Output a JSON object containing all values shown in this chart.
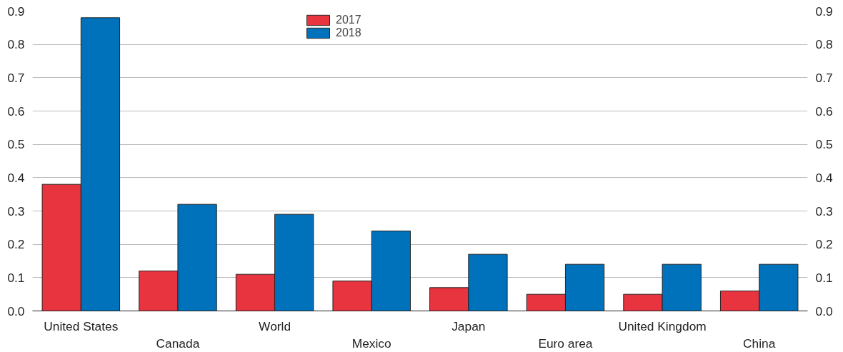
{
  "chart_data": {
    "type": "bar",
    "categories": [
      "United States",
      "Canada",
      "World",
      "Mexico",
      "Japan",
      "Euro area",
      "United Kingdom",
      "China"
    ],
    "series": [
      {
        "name": "2017",
        "color": "#e8343e",
        "values": [
          0.38,
          0.12,
          0.11,
          0.09,
          0.07,
          0.05,
          0.05,
          0.06
        ]
      },
      {
        "name": "2018",
        "color": "#0072bc",
        "values": [
          0.88,
          0.32,
          0.29,
          0.24,
          0.17,
          0.14,
          0.14,
          0.14
        ]
      }
    ],
    "ylim": [
      0,
      0.9
    ],
    "yticks": [
      {
        "value": 0,
        "label": "0.0"
      },
      0.1,
      0.2,
      0.3,
      0.4,
      0.5,
      0.6,
      0.7,
      0.8,
      0.9
    ],
    "y2lim": [
      0,
      0.9
    ],
    "y2ticks": [
      {
        "value": 0,
        "label": "0.0"
      },
      0.1,
      0.2,
      0.3,
      0.4,
      0.5,
      0.6,
      0.7,
      0.8,
      0.9
    ],
    "grid": "y",
    "legend": "top"
  }
}
